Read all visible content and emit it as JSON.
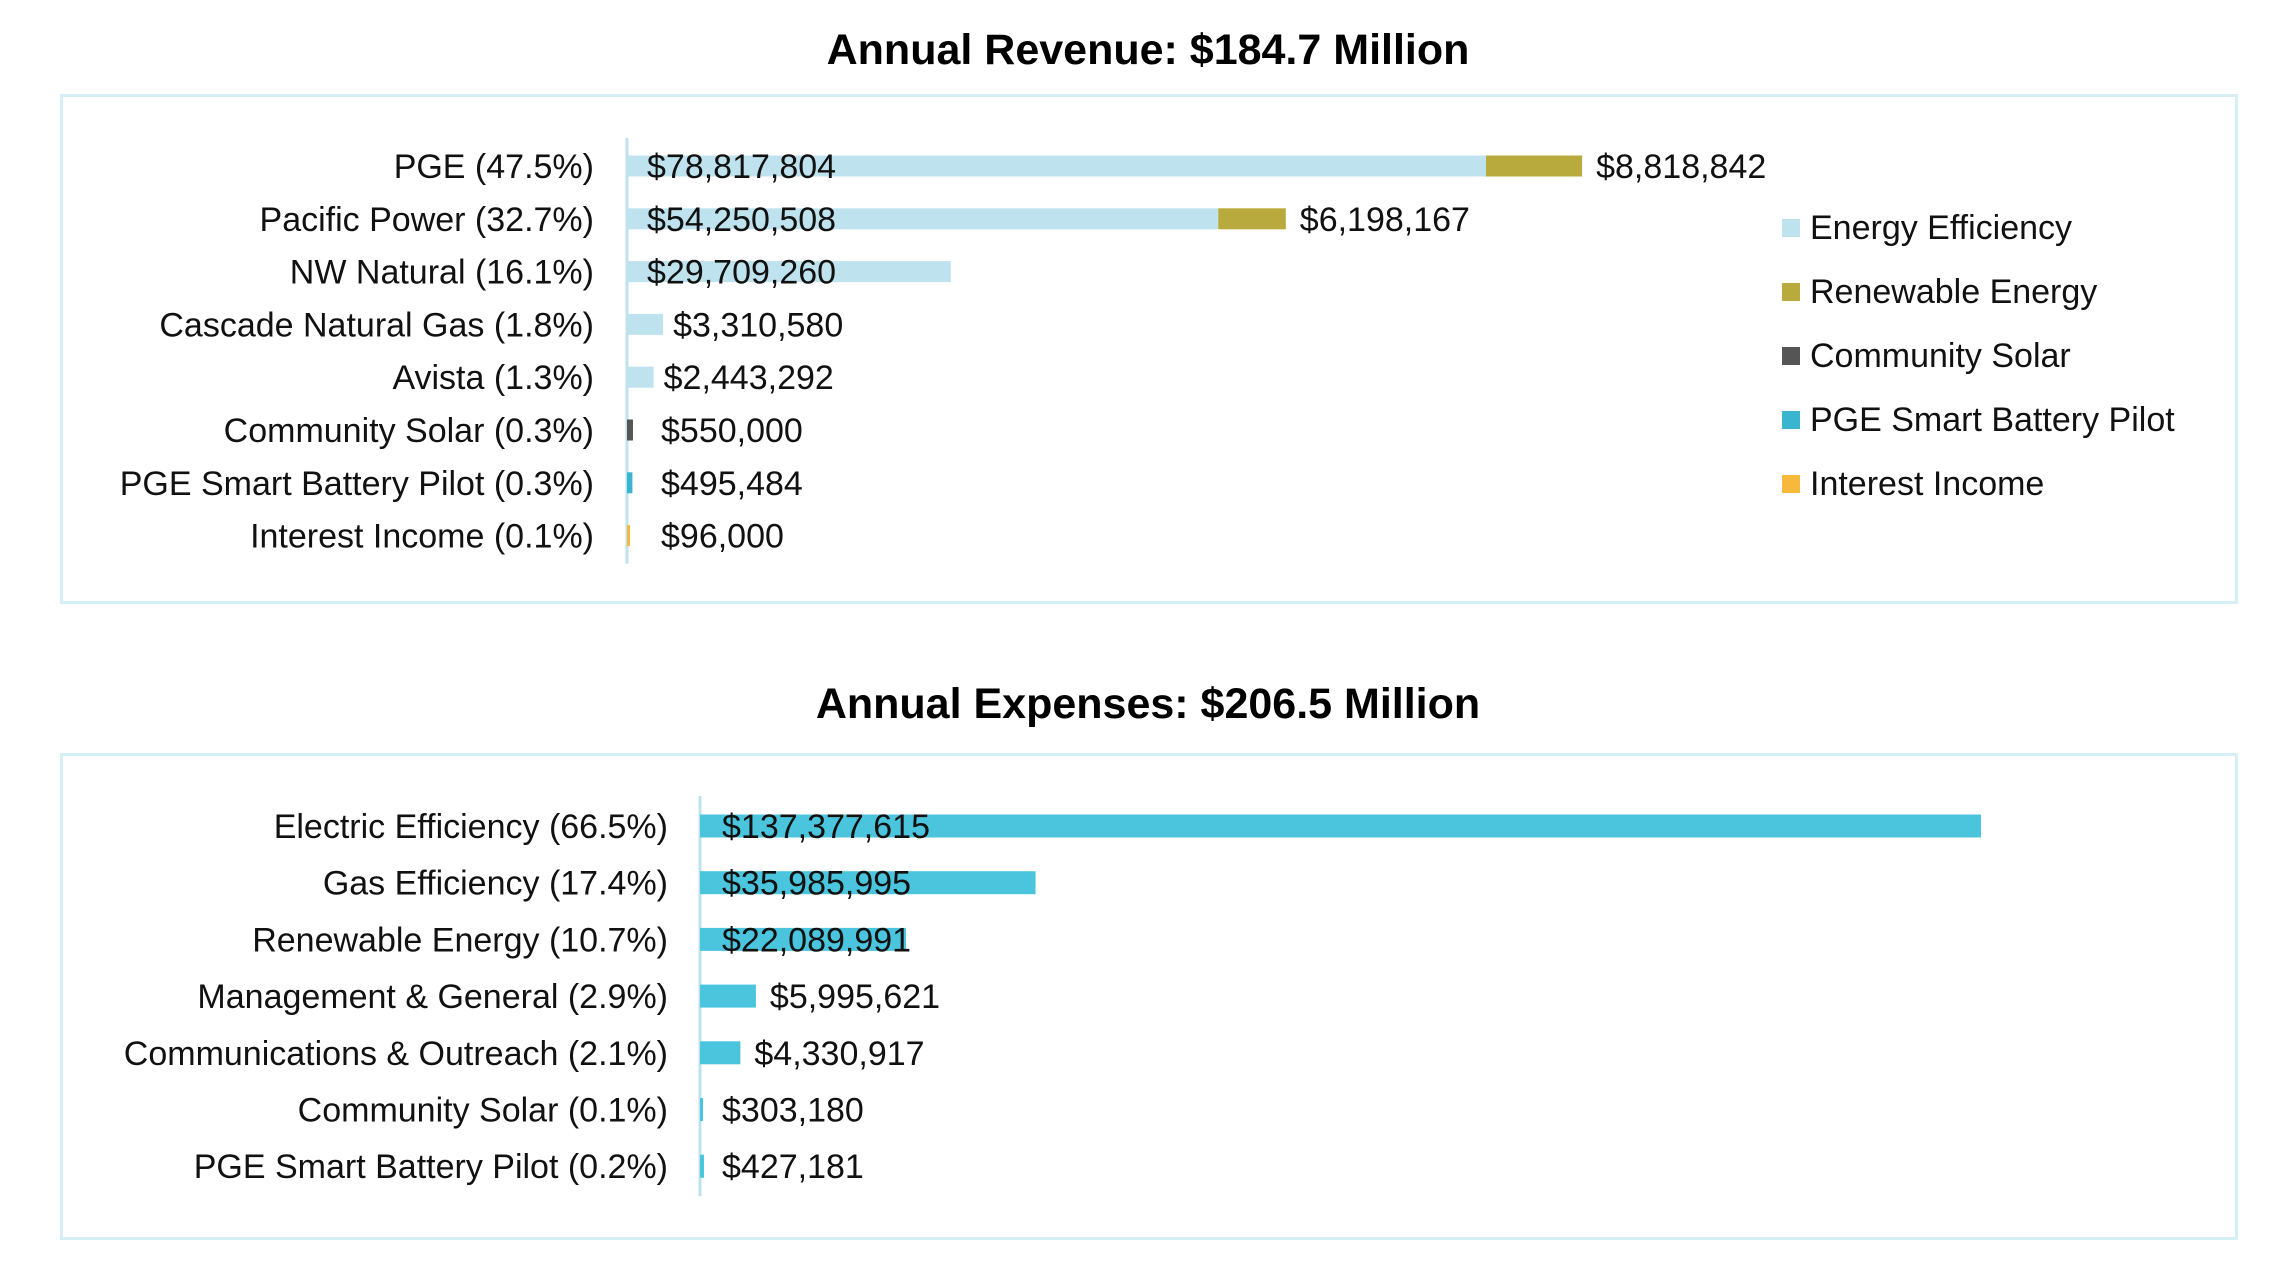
{
  "revenue": {
    "title": "Annual Revenue: $184.7 Million",
    "legend": [
      {
        "label": "Energy Efficiency",
        "color": "#bfe3ee"
      },
      {
        "label": "Renewable Energy",
        "color": "#b8aa3c"
      },
      {
        "label": "Community Solar",
        "color": "#555555"
      },
      {
        "label": "PGE Smart Battery Pilot",
        "color": "#3ab5d0"
      },
      {
        "label": "Interest Income",
        "color": "#f6b93b"
      }
    ]
  },
  "expenses": {
    "title": "Annual Expenses: $206.5 Million"
  },
  "chart_data": [
    {
      "type": "bar",
      "orientation": "horizontal",
      "stacked": true,
      "title": "Annual Revenue: $184.7 Million",
      "xlim": [
        0,
        100000000
      ],
      "grid": false,
      "legend_position": "right",
      "categories": [
        "PGE (47.5%)",
        "Pacific Power (32.7%)",
        "NW Natural (16.1%)",
        "Cascade Natural Gas (1.8%)",
        "Avista (1.3%)",
        "Community Solar (0.3%)",
        "PGE Smart Battery Pilot (0.3%)",
        "Interest Income (0.1%)"
      ],
      "series": [
        {
          "name": "Energy Efficiency",
          "color": "#bfe3ee",
          "values": [
            78817804,
            54250508,
            29709260,
            3310580,
            2443292,
            0,
            0,
            0
          ]
        },
        {
          "name": "Renewable Energy",
          "color": "#b8aa3c",
          "values": [
            8818842,
            6198167,
            0,
            0,
            0,
            0,
            0,
            0
          ]
        },
        {
          "name": "Community Solar",
          "color": "#555555",
          "values": [
            0,
            0,
            0,
            0,
            0,
            550000,
            0,
            0
          ]
        },
        {
          "name": "PGE Smart Battery Pilot",
          "color": "#3ab5d0",
          "values": [
            0,
            0,
            0,
            0,
            0,
            0,
            495484,
            0
          ]
        },
        {
          "name": "Interest Income",
          "color": "#f6b93b",
          "values": [
            0,
            0,
            0,
            0,
            0,
            0,
            0,
            96000
          ]
        }
      ],
      "data_labels": [
        [
          "$78,817,804",
          "$8,818,842"
        ],
        [
          "$54,250,508",
          "$6,198,167"
        ],
        [
          "$29,709,260"
        ],
        [
          "$3,310,580"
        ],
        [
          "$2,443,292"
        ],
        [
          "$550,000"
        ],
        [
          "$495,484"
        ],
        [
          "$96,000"
        ]
      ]
    },
    {
      "type": "bar",
      "orientation": "horizontal",
      "title": "Annual Expenses: $206.5 Million",
      "xlim": [
        0,
        150000000
      ],
      "grid": false,
      "color": "#4bc5dd",
      "categories": [
        "Electric Efficiency (66.5%)",
        "Gas Efficiency (17.4%)",
        "Renewable Energy (10.7%)",
        "Management & General (2.9%)",
        "Communications & Outreach (2.1%)",
        "Community Solar (0.1%)",
        "PGE Smart Battery Pilot (0.2%)"
      ],
      "values": [
        137377615,
        35985995,
        22089991,
        5995621,
        4330917,
        303180,
        427181
      ],
      "data_labels": [
        "$137,377,615",
        "$35,985,995",
        "$22,089,991",
        "$5,995,621",
        "$4,330,917",
        "$303,180",
        "$427,181"
      ]
    }
  ]
}
